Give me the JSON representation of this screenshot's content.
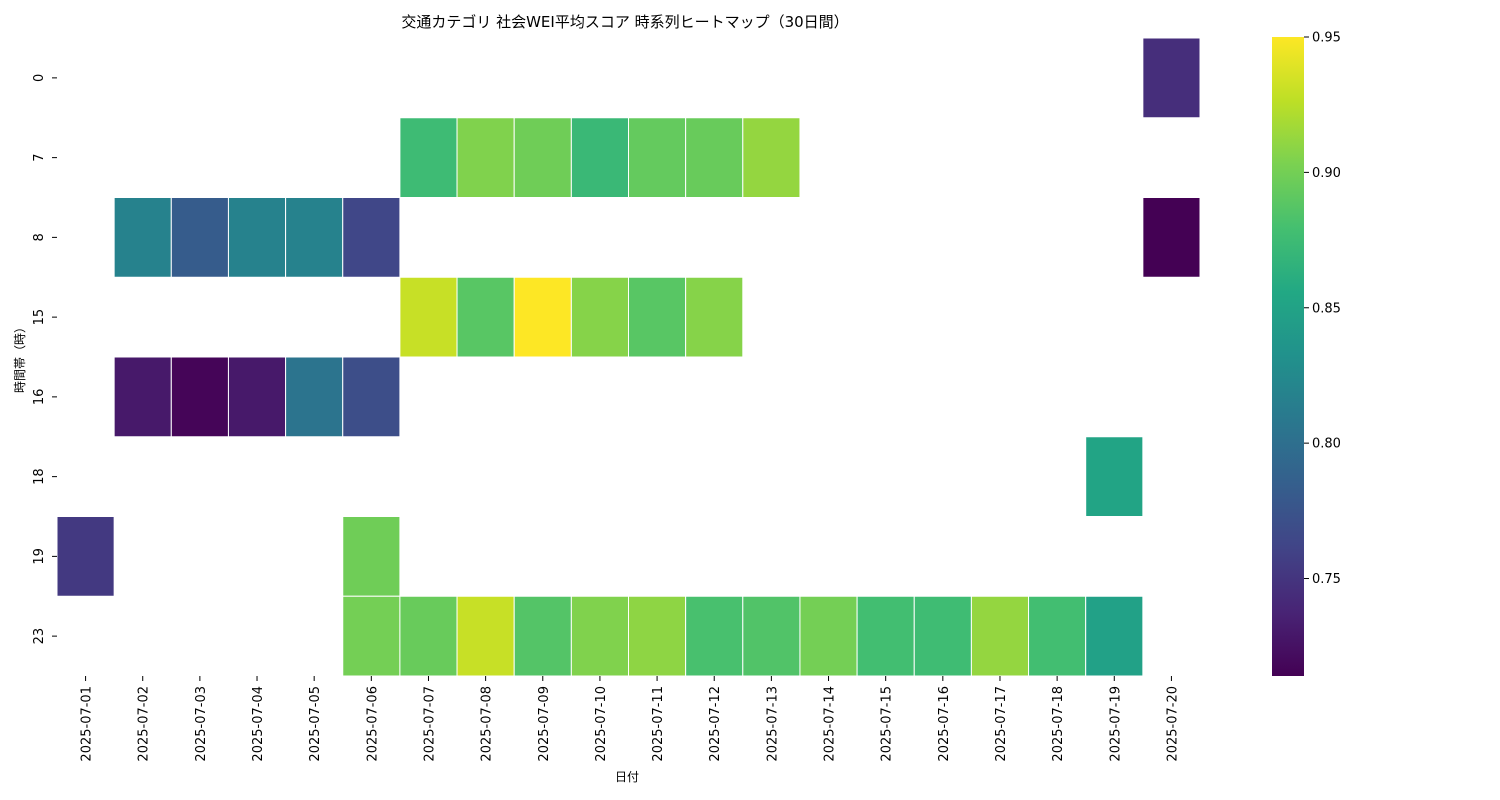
{
  "chart_data": {
    "type": "heatmap",
    "title": "交通カテゴリ 社会WEI平均スコア 時系列ヒートマップ（30日間）",
    "xlabel": "日付",
    "ylabel": "時間帯（時）",
    "x_categories": [
      "2025-07-01",
      "2025-07-02",
      "2025-07-03",
      "2025-07-04",
      "2025-07-05",
      "2025-07-06",
      "2025-07-07",
      "2025-07-08",
      "2025-07-09",
      "2025-07-10",
      "2025-07-11",
      "2025-07-12",
      "2025-07-13",
      "2025-07-14",
      "2025-07-15",
      "2025-07-16",
      "2025-07-17",
      "2025-07-18",
      "2025-07-19",
      "2025-07-20"
    ],
    "y_categories": [
      "0",
      "7",
      "8",
      "15",
      "16",
      "18",
      "19",
      "23"
    ],
    "values": [
      [
        null,
        null,
        null,
        null,
        null,
        null,
        null,
        null,
        null,
        null,
        null,
        null,
        null,
        null,
        null,
        null,
        null,
        null,
        null,
        0.745
      ],
      [
        null,
        null,
        null,
        null,
        null,
        null,
        0.875,
        0.905,
        0.898,
        0.872,
        0.893,
        0.895,
        0.912,
        null,
        null,
        null,
        null,
        null,
        null,
        null
      ],
      [
        null,
        0.818,
        0.782,
        0.818,
        0.818,
        0.764,
        null,
        null,
        null,
        null,
        null,
        null,
        null,
        null,
        null,
        null,
        null,
        null,
        null,
        0.714
      ],
      [
        null,
        null,
        null,
        null,
        null,
        null,
        0.93,
        0.888,
        0.95,
        0.907,
        0.888,
        0.907,
        null,
        null,
        null,
        null,
        null,
        null,
        null,
        null
      ],
      [
        null,
        0.73,
        0.717,
        0.73,
        0.805,
        0.77,
        null,
        null,
        null,
        null,
        null,
        null,
        null,
        null,
        null,
        null,
        null,
        null,
        null,
        null
      ],
      [
        null,
        null,
        null,
        null,
        null,
        null,
        null,
        null,
        null,
        null,
        null,
        null,
        null,
        null,
        null,
        null,
        null,
        null,
        0.852,
        null
      ],
      [
        0.753,
        null,
        null,
        null,
        null,
        0.898,
        null,
        null,
        null,
        null,
        null,
        null,
        null,
        null,
        null,
        null,
        null,
        null,
        null,
        null
      ],
      [
        null,
        null,
        null,
        null,
        null,
        0.9,
        0.895,
        0.93,
        0.886,
        0.905,
        0.91,
        0.881,
        0.885,
        0.9,
        0.878,
        0.876,
        0.912,
        0.878,
        0.848,
        null
      ]
    ],
    "colorbar": {
      "colormap": "viridis",
      "min": 0.714,
      "max": 0.95,
      "ticks": [
        "0.75",
        "0.80",
        "0.85",
        "0.90",
        "0.95"
      ]
    }
  }
}
